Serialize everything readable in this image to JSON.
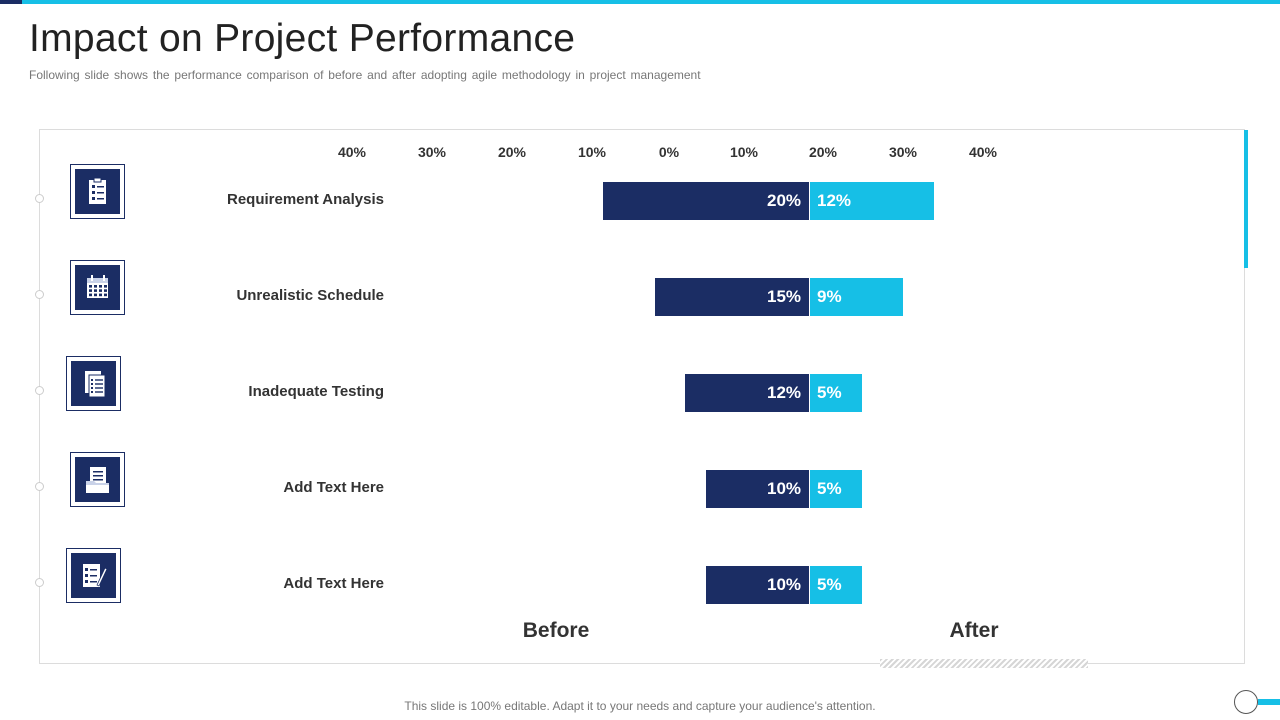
{
  "header": {
    "title": "Impact on Project Performance",
    "subtitle": "Following slide shows the performance  comparison of before and after adopting agile methodology in project management"
  },
  "footer": {
    "text": "This slide is 100% editable. Adapt it to your needs and capture your audience's attention."
  },
  "icons": [
    "clipboard-icon",
    "calendar-icon",
    "test-report-icon",
    "document-folder-icon",
    "checklist-pen-icon"
  ],
  "colors": {
    "before": "#1b2d64",
    "after": "#16bfe6",
    "accent": "#16bfe6"
  },
  "chart_data": {
    "type": "bar",
    "orientation": "horizontal-diverging",
    "categories": [
      "Requirement Analysis",
      "Unrealistic Schedule",
      "Inadequate Testing",
      "Add Text Here",
      "Add Text Here"
    ],
    "series": [
      {
        "name": "Before",
        "values": [
          20,
          15,
          12,
          10,
          10
        ],
        "labels": [
          "20%",
          "15%",
          "12%",
          "10%",
          "10%"
        ]
      },
      {
        "name": "After",
        "values": [
          12,
          9,
          5,
          5,
          5
        ],
        "labels": [
          "12%",
          "9%",
          "5%",
          "5%",
          "5%"
        ]
      }
    ],
    "axis": {
      "ticks": [
        -40,
        -30,
        -20,
        -10,
        0,
        10,
        20,
        30,
        40
      ],
      "tick_labels": [
        "40%",
        "30%",
        "20%",
        "10%",
        "0%",
        "10%",
        "20%",
        "30%",
        "40%"
      ],
      "xlim": [
        -40,
        40
      ]
    },
    "legend": [
      "Before",
      "After"
    ]
  }
}
